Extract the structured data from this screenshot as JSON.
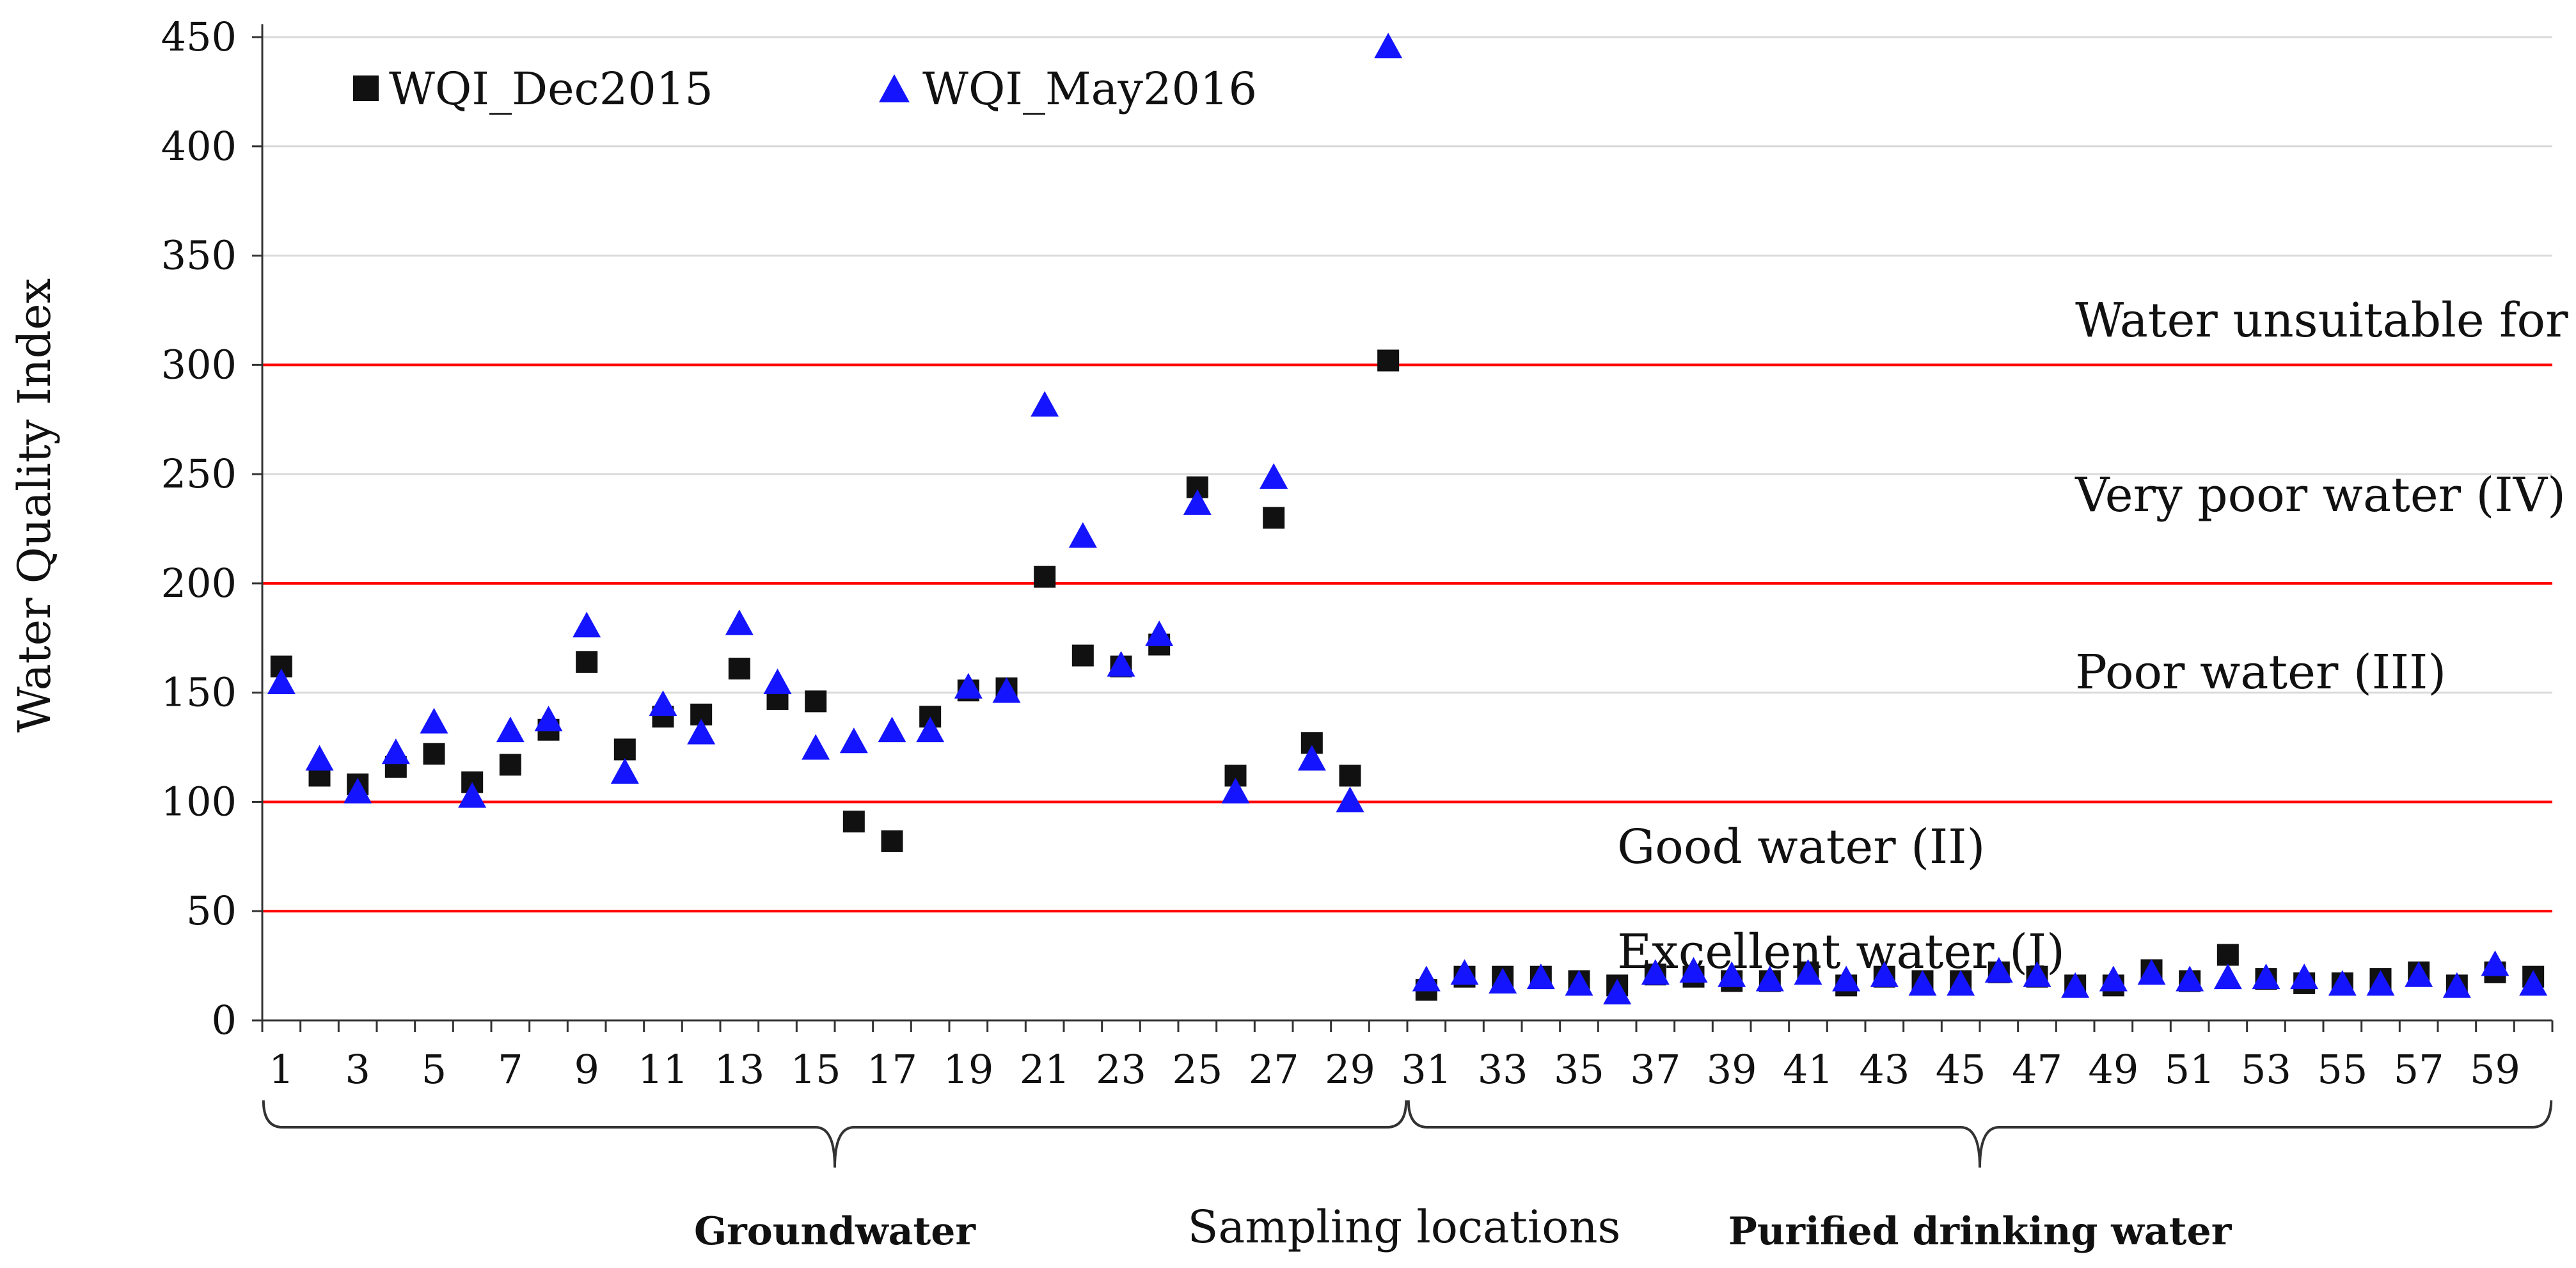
{
  "chart_data": {
    "type": "scatter",
    "title": "",
    "xlabel": "Sampling locations",
    "ylabel": "Water Quality Index",
    "ylim": [
      0,
      450
    ],
    "xlim": [
      0.5,
      60.5
    ],
    "y_ticks": [
      0,
      50,
      100,
      150,
      200,
      250,
      300,
      350,
      400,
      450
    ],
    "x_tick_labels": [
      1,
      3,
      5,
      7,
      9,
      11,
      13,
      15,
      17,
      19,
      21,
      23,
      25,
      27,
      29,
      31,
      33,
      35,
      37,
      39,
      41,
      43,
      45,
      47,
      49,
      51,
      53,
      55,
      57,
      59
    ],
    "grid": true,
    "legend_position": "top-left",
    "x": [
      1,
      2,
      3,
      4,
      5,
      6,
      7,
      8,
      9,
      10,
      11,
      12,
      13,
      14,
      15,
      16,
      17,
      18,
      19,
      20,
      21,
      22,
      23,
      24,
      25,
      26,
      27,
      28,
      29,
      30,
      31,
      32,
      33,
      34,
      35,
      36,
      37,
      38,
      39,
      40,
      41,
      42,
      43,
      44,
      45,
      46,
      47,
      48,
      49,
      50,
      51,
      52,
      53,
      54,
      55,
      56,
      57,
      58,
      59,
      60
    ],
    "series": [
      {
        "name": "WQI_Dec2015",
        "marker": "square",
        "color": "#111111",
        "values": [
          162,
          112,
          108,
          116,
          122,
          109,
          117,
          133,
          164,
          124,
          139,
          140,
          161,
          147,
          146,
          91,
          82,
          139,
          151,
          152,
          203,
          167,
          162,
          172,
          244,
          112,
          230,
          127,
          112,
          302,
          14,
          20,
          20,
          20,
          18,
          16,
          21,
          20,
          18,
          18,
          22,
          16,
          20,
          18,
          18,
          22,
          20,
          16,
          16,
          23,
          18,
          30,
          19,
          17,
          17,
          19,
          22,
          16,
          22,
          20
        ]
      },
      {
        "name": "WQI_May2016",
        "marker": "triangle",
        "color": "#1414ff",
        "values": [
          154,
          119,
          104,
          122,
          136,
          102,
          132,
          137,
          180,
          113,
          144,
          131,
          181,
          154,
          124,
          127,
          132,
          132,
          152,
          150,
          281,
          221,
          162,
          176,
          236,
          104,
          248,
          119,
          100,
          445,
          18,
          21,
          17,
          19,
          16,
          12,
          21,
          22,
          20,
          18,
          21,
          18,
          20,
          16,
          16,
          22,
          20,
          15,
          18,
          21,
          18,
          19,
          19,
          19,
          16,
          16,
          20,
          15,
          25,
          16
        ]
      }
    ],
    "thresholds": [
      {
        "value": 50,
        "color": "#ff0000"
      },
      {
        "value": 100,
        "color": "#ff0000"
      },
      {
        "value": 200,
        "color": "#ff0000"
      },
      {
        "value": 300,
        "color": "#ff0000"
      }
    ],
    "band_labels": [
      {
        "text": "Excellent water (I)",
        "x": 36,
        "y": 24
      },
      {
        "text": "Good water (II)",
        "x": 36,
        "y": 72
      },
      {
        "text": "Poor water (III)",
        "x": 48,
        "y": 152
      },
      {
        "text": "Very poor water (IV)",
        "x": 48,
        "y": 233
      },
      {
        "text": "Water unsuitable for drinking (V)",
        "x": 48,
        "y": 313
      }
    ],
    "groups": [
      {
        "label": "Groundwater",
        "from": 1,
        "to": 30
      },
      {
        "label": "Purified drinking water",
        "from": 31,
        "to": 60
      }
    ]
  },
  "colors": {
    "threshold_line": "#ff0000",
    "grid_line": "#d9d9d9",
    "axis_line": "#333333"
  }
}
